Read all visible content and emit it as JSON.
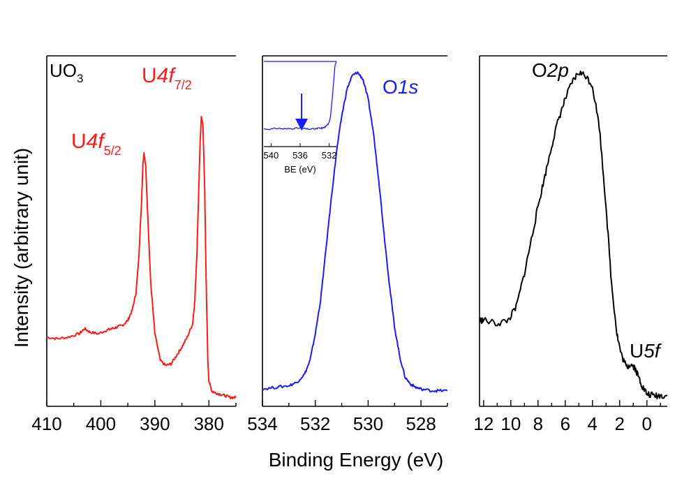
{
  "figure": {
    "ylabel": "Intensity (arbitrary unit)",
    "xlabel": "Binding Energy (eV)"
  },
  "colors": {
    "red": "#ff1a1a",
    "blue": "#1a1aff",
    "black": "#000000"
  },
  "chart_data": [
    {
      "type": "line",
      "panel": "U4f",
      "color_key": "red",
      "xlim": [
        410,
        375
      ],
      "ylim": [
        0,
        1
      ],
      "xticks": [
        410,
        400,
        390,
        380
      ],
      "xtick_labels": [
        "410",
        "400",
        "390",
        "380"
      ],
      "sample_label": "UO",
      "sample_sub": "3",
      "annotations": [
        {
          "main": "U",
          "ital": "4f",
          "sub": "5/2"
        },
        {
          "main": "U",
          "ital": "4f",
          "sub": "7/2"
        }
      ],
      "x": [
        410,
        408,
        406,
        404,
        403,
        402,
        400.5,
        399,
        398,
        397,
        396,
        395,
        394.2,
        393.5,
        393,
        392.5,
        392.2,
        392,
        391.7,
        391.3,
        390.8,
        390,
        389,
        388,
        387,
        386,
        385,
        384,
        383,
        382.6,
        382.2,
        381.9,
        381.6,
        381.4,
        381.1,
        380.8,
        380.5,
        380.2,
        380,
        379.5,
        379,
        378,
        377,
        376,
        375
      ],
      "y": [
        0.19,
        0.185,
        0.19,
        0.2,
        0.215,
        0.205,
        0.2,
        0.21,
        0.215,
        0.22,
        0.225,
        0.24,
        0.27,
        0.32,
        0.42,
        0.58,
        0.71,
        0.74,
        0.7,
        0.55,
        0.36,
        0.2,
        0.12,
        0.105,
        0.11,
        0.135,
        0.16,
        0.19,
        0.23,
        0.3,
        0.45,
        0.62,
        0.78,
        0.85,
        0.82,
        0.65,
        0.35,
        0.12,
        0.06,
        0.03,
        0.025,
        0.02,
        0.015,
        0.01,
        0.01
      ]
    },
    {
      "type": "line",
      "panel": "O1s",
      "color_key": "blue",
      "xlim": [
        534,
        527
      ],
      "ylim": [
        0,
        1
      ],
      "xticks": [
        534,
        532,
        530,
        528
      ],
      "xtick_labels": [
        "534",
        "532",
        "530",
        "528"
      ],
      "annotations": [
        {
          "main": "O",
          "ital": "1s",
          "sub": ""
        }
      ],
      "x": [
        534,
        533.5,
        533,
        532.7,
        532.4,
        532.2,
        532,
        531.8,
        531.6,
        531.4,
        531.2,
        531,
        530.8,
        530.6,
        530.4,
        530.2,
        530,
        529.8,
        529.6,
        529.4,
        529.2,
        529,
        528.8,
        528.6,
        528.4,
        528.2,
        528,
        527.6,
        527.3,
        527
      ],
      "y": [
        0.035,
        0.04,
        0.045,
        0.055,
        0.08,
        0.12,
        0.2,
        0.3,
        0.45,
        0.6,
        0.74,
        0.85,
        0.93,
        0.97,
        0.98,
        0.96,
        0.9,
        0.8,
        0.66,
        0.5,
        0.35,
        0.22,
        0.13,
        0.07,
        0.05,
        0.04,
        0.035,
        0.03,
        0.03,
        0.03
      ],
      "inset": {
        "xlim": [
          541,
          531
        ],
        "xticks": [
          540,
          536,
          532
        ],
        "xtick_labels": [
          "540",
          "536",
          "532"
        ],
        "xlabel": "BE (eV)",
        "arrow_at": 535.8,
        "x": [
          541,
          540,
          539,
          538,
          537,
          536,
          535,
          534,
          533.5,
          533,
          532.5,
          532,
          531.8,
          531.5,
          531.2,
          531
        ],
        "y": [
          0.12,
          0.12,
          0.13,
          0.12,
          0.13,
          0.13,
          0.12,
          0.12,
          0.13,
          0.13,
          0.15,
          0.2,
          0.3,
          0.6,
          0.95,
          1.0
        ]
      }
    },
    {
      "type": "line",
      "panel": "valence",
      "color_key": "black",
      "xlim": [
        12.3,
        -1.5
      ],
      "ylim": [
        0,
        1
      ],
      "xticks": [
        12,
        10,
        8,
        6,
        4,
        2,
        0
      ],
      "xtick_labels": [
        "12",
        "10",
        "8",
        "6",
        "4",
        "2",
        "0"
      ],
      "annotations": [
        {
          "main": "O",
          "ital": "2p",
          "sub": ""
        },
        {
          "main": "U",
          "ital": "5f",
          "sub": ""
        }
      ],
      "x": [
        12.3,
        12,
        11,
        10.2,
        9.6,
        9,
        8.5,
        8,
        7.5,
        7,
        6.5,
        6,
        5.5,
        5,
        4.5,
        4,
        3.5,
        3,
        2.6,
        2.2,
        1.9,
        1.5,
        1.2,
        0.9,
        0.6,
        0.3,
        0,
        -0.5,
        -1,
        -1.5
      ],
      "y": [
        0.24,
        0.24,
        0.23,
        0.24,
        0.28,
        0.38,
        0.48,
        0.58,
        0.67,
        0.76,
        0.84,
        0.9,
        0.95,
        0.98,
        0.97,
        0.94,
        0.82,
        0.58,
        0.35,
        0.2,
        0.14,
        0.1,
        0.11,
        0.1,
        0.07,
        0.04,
        0.02,
        0.015,
        0.015,
        0.015
      ]
    }
  ]
}
